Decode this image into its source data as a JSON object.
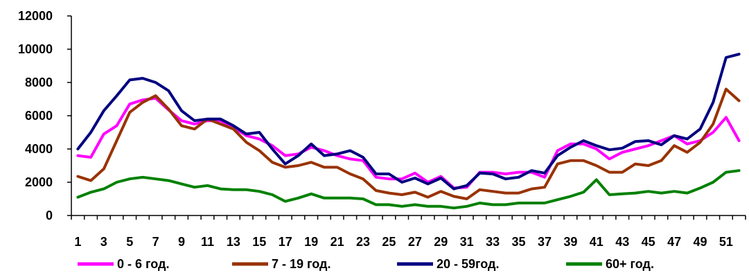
{
  "chart_data": {
    "type": "line",
    "title": "",
    "xlabel": "",
    "ylabel": "",
    "ylim": [
      0,
      12000
    ],
    "yticks": [
      0,
      2000,
      4000,
      6000,
      8000,
      10000,
      12000
    ],
    "x": [
      1,
      2,
      3,
      4,
      5,
      6,
      7,
      8,
      9,
      10,
      11,
      12,
      13,
      14,
      15,
      16,
      17,
      18,
      19,
      20,
      21,
      22,
      23,
      24,
      25,
      26,
      27,
      28,
      29,
      30,
      31,
      32,
      33,
      34,
      35,
      36,
      37,
      38,
      39,
      40,
      41,
      42,
      43,
      44,
      45,
      46,
      47,
      48,
      49,
      50,
      51,
      52
    ],
    "xtick_labels": [
      "1",
      "3",
      "5",
      "7",
      "9",
      "11",
      "13",
      "15",
      "17",
      "19",
      "21",
      "23",
      "25",
      "27",
      "29",
      "31",
      "33",
      "35",
      "37",
      "39",
      "41",
      "43",
      "45",
      "47",
      "49",
      "51"
    ],
    "grid": false,
    "legend_position": "bottom",
    "series": [
      {
        "name": "0 - 6 год.",
        "color": "#ff00ff",
        "values": [
          3600,
          3500,
          4900,
          5400,
          6700,
          6950,
          7050,
          6350,
          5700,
          5500,
          5700,
          5700,
          5300,
          4800,
          4600,
          4200,
          3600,
          3700,
          4100,
          3900,
          3600,
          3400,
          3300,
          2300,
          2200,
          2200,
          2550,
          2000,
          2350,
          1650,
          1700,
          2600,
          2600,
          2500,
          2600,
          2600,
          2300,
          3900,
          4300,
          4300,
          4000,
          3400,
          3800,
          4000,
          4200,
          4500,
          4800,
          4300,
          4500,
          5000,
          5900,
          4500
        ]
      },
      {
        "name": "7 - 19 год.",
        "color": "#993300",
        "values": [
          2350,
          2100,
          2800,
          4500,
          6200,
          6800,
          7200,
          6400,
          5400,
          5200,
          5800,
          5500,
          5200,
          4400,
          3900,
          3200,
          2900,
          3000,
          3200,
          2900,
          2900,
          2500,
          2200,
          1500,
          1350,
          1250,
          1400,
          1100,
          1450,
          1150,
          1000,
          1550,
          1450,
          1350,
          1350,
          1600,
          1700,
          3100,
          3300,
          3300,
          3000,
          2600,
          2600,
          3100,
          3000,
          3300,
          4200,
          3800,
          4400,
          5500,
          7600,
          6900
        ]
      },
      {
        "name": "20 - 59год.",
        "color": "#000080",
        "values": [
          4000,
          5000,
          6300,
          7200,
          8150,
          8250,
          8000,
          7500,
          6300,
          5700,
          5800,
          5800,
          5400,
          4900,
          5000,
          4000,
          3100,
          3600,
          4300,
          3600,
          3700,
          3900,
          3500,
          2500,
          2500,
          2000,
          2250,
          1900,
          2250,
          1600,
          1800,
          2550,
          2500,
          2200,
          2300,
          2700,
          2550,
          3600,
          4100,
          4500,
          4200,
          3950,
          4050,
          4450,
          4500,
          4250,
          4800,
          4600,
          5200,
          6800,
          9500,
          9700
        ]
      },
      {
        "name": "60+ год.",
        "color": "#008000",
        "values": [
          1100,
          1400,
          1600,
          2000,
          2200,
          2300,
          2200,
          2100,
          1900,
          1700,
          1800,
          1600,
          1550,
          1550,
          1450,
          1250,
          850,
          1050,
          1300,
          1050,
          1050,
          1050,
          1000,
          650,
          650,
          550,
          650,
          550,
          550,
          450,
          550,
          750,
          650,
          650,
          750,
          750,
          750,
          950,
          1150,
          1400,
          2150,
          1250,
          1300,
          1350,
          1450,
          1350,
          1450,
          1350,
          1650,
          2000,
          2600,
          2700
        ]
      }
    ]
  }
}
